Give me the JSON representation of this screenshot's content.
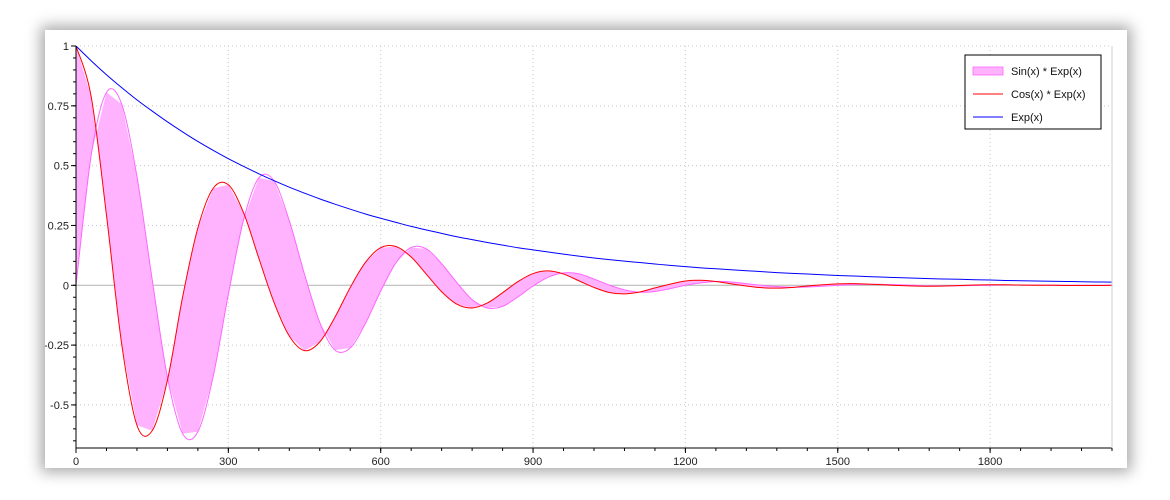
{
  "chart_data": {
    "type": "line",
    "x_axis": {
      "min": 0,
      "max": 2040,
      "ticks": [
        0,
        300,
        600,
        900,
        1200,
        1500,
        1800
      ],
      "labels": [
        "0",
        "300",
        "600",
        "900",
        "1200",
        "1500",
        "1800"
      ]
    },
    "y_axis": {
      "min": -0.68,
      "max": 1.0,
      "ticks": [
        1,
        0.75,
        0.5,
        0.25,
        0,
        -0.25,
        -0.5
      ],
      "labels": [
        "1",
        "0.75",
        "0.5",
        "0.25",
        "0",
        "-0.25",
        "-0.5"
      ]
    },
    "grid": true,
    "legend_position": "top-right",
    "fill_between": {
      "series_a": "Sin(x) * Exp(x)",
      "series_b": "Cos(x) * Exp(x)"
    },
    "series": [
      {
        "name": "Sin(x) * Exp(x)",
        "color": "#ff66ff",
        "fill": "#ffb3ff",
        "x": [
          0,
          30,
          60,
          90,
          120,
          150,
          180,
          210,
          240,
          270,
          300,
          330,
          360,
          390,
          420,
          450,
          480,
          510,
          540,
          570,
          600,
          630,
          660,
          690,
          720,
          750,
          780,
          810,
          840,
          870,
          900,
          930,
          960,
          990,
          1020,
          1050,
          1080,
          1110,
          1140,
          1170,
          1200,
          1230,
          1260,
          1290,
          1320,
          1350,
          1380,
          1410,
          1440,
          1470,
          1500,
          1530,
          1560,
          1590,
          1620,
          1650,
          1680,
          1710,
          1740,
          1770,
          1800,
          1830,
          1860,
          1890,
          1920,
          1950,
          1980,
          2010,
          2040
        ],
        "y": [
          0.0,
          0.545,
          0.806,
          0.757,
          0.455,
          0.024,
          -0.384,
          -0.62,
          -0.612,
          -0.382,
          -0.038,
          0.274,
          0.449,
          0.436,
          0.27,
          0.046,
          -0.155,
          -0.271,
          -0.262,
          -0.159,
          -0.024,
          0.094,
          0.158,
          0.152,
          0.09,
          0.011,
          -0.06,
          -0.095,
          -0.088,
          -0.049,
          -0.003,
          0.034,
          0.052,
          0.048,
          0.026,
          0.001,
          -0.019,
          -0.029,
          -0.026,
          -0.014,
          0.0,
          0.01,
          0.016,
          0.014,
          0.007,
          0.0,
          -0.005,
          -0.008,
          -0.007,
          -0.004,
          0.0,
          0.003,
          0.004,
          0.004,
          0.002,
          0.0,
          -0.002,
          -0.002,
          -0.002,
          -0.001,
          0.0,
          0.001,
          0.001,
          0.001,
          0.0,
          0.0,
          0.0,
          0.0,
          0.0
        ]
      },
      {
        "name": "Cos(x) * Exp(x)",
        "color": "#ff0000",
        "x": [
          0,
          30,
          60,
          90,
          120,
          150,
          180,
          210,
          240,
          270,
          300,
          330,
          360,
          390,
          420,
          450,
          480,
          510,
          540,
          570,
          600,
          630,
          660,
          690,
          720,
          750,
          780,
          810,
          840,
          870,
          900,
          930,
          960,
          990,
          1020,
          1050,
          1080,
          1110,
          1140,
          1170,
          1200,
          1230,
          1260,
          1290,
          1320,
          1350,
          1380,
          1410,
          1440,
          1470,
          1500,
          1530,
          1560,
          1590,
          1620,
          1650,
          1680,
          1710,
          1740,
          1770,
          1800,
          1830,
          1860,
          1890,
          1920,
          1950,
          1980,
          2010,
          2040
        ],
        "y": [
          1.0,
          0.787,
          0.293,
          -0.246,
          -0.585,
          -0.608,
          -0.397,
          -0.048,
          0.24,
          0.405,
          0.42,
          0.303,
          0.113,
          -0.072,
          -0.212,
          -0.273,
          -0.237,
          -0.133,
          -0.009,
          0.096,
          0.157,
          0.162,
          0.118,
          0.046,
          -0.027,
          -0.079,
          -0.095,
          -0.074,
          -0.031,
          0.015,
          0.049,
          0.06,
          0.047,
          0.019,
          -0.009,
          -0.03,
          -0.036,
          -0.028,
          -0.011,
          0.005,
          0.018,
          0.021,
          0.016,
          0.006,
          -0.003,
          -0.01,
          -0.012,
          -0.009,
          -0.003,
          0.002,
          0.006,
          0.007,
          0.005,
          0.002,
          -0.001,
          -0.003,
          -0.004,
          -0.003,
          -0.001,
          0.001,
          0.002,
          0.002,
          0.001,
          0.0,
          0.0,
          -0.001,
          -0.001,
          -0.001,
          0.0
        ]
      },
      {
        "name": "Exp(x)",
        "color": "#0000ff",
        "x": [
          0,
          30,
          60,
          90,
          120,
          150,
          180,
          210,
          240,
          270,
          300,
          330,
          360,
          390,
          420,
          450,
          480,
          510,
          540,
          570,
          600,
          630,
          660,
          690,
          720,
          750,
          780,
          810,
          840,
          870,
          900,
          930,
          960,
          990,
          1020,
          1050,
          1080,
          1110,
          1140,
          1170,
          1200,
          1230,
          1260,
          1290,
          1320,
          1350,
          1380,
          1410,
          1440,
          1470,
          1500,
          1530,
          1560,
          1590,
          1620,
          1650,
          1680,
          1710,
          1740,
          1770,
          1800,
          1830,
          1860,
          1890,
          1920,
          1950,
          1980,
          2010,
          2040
        ],
        "y": [
          1.0,
          0.938,
          0.88,
          0.826,
          0.775,
          0.728,
          0.683,
          0.641,
          0.601,
          0.564,
          0.529,
          0.497,
          0.466,
          0.437,
          0.41,
          0.385,
          0.361,
          0.339,
          0.318,
          0.298,
          0.28,
          0.263,
          0.246,
          0.231,
          0.217,
          0.203,
          0.191,
          0.179,
          0.168,
          0.157,
          0.148,
          0.139,
          0.13,
          0.122,
          0.114,
          0.107,
          0.101,
          0.095,
          0.089,
          0.083,
          0.078,
          0.073,
          0.069,
          0.065,
          0.061,
          0.057,
          0.053,
          0.05,
          0.047,
          0.044,
          0.041,
          0.039,
          0.036,
          0.034,
          0.032,
          0.03,
          0.028,
          0.026,
          0.025,
          0.023,
          0.022,
          0.02,
          0.019,
          0.018,
          0.017,
          0.016,
          0.015,
          0.014,
          0.013
        ]
      }
    ]
  }
}
